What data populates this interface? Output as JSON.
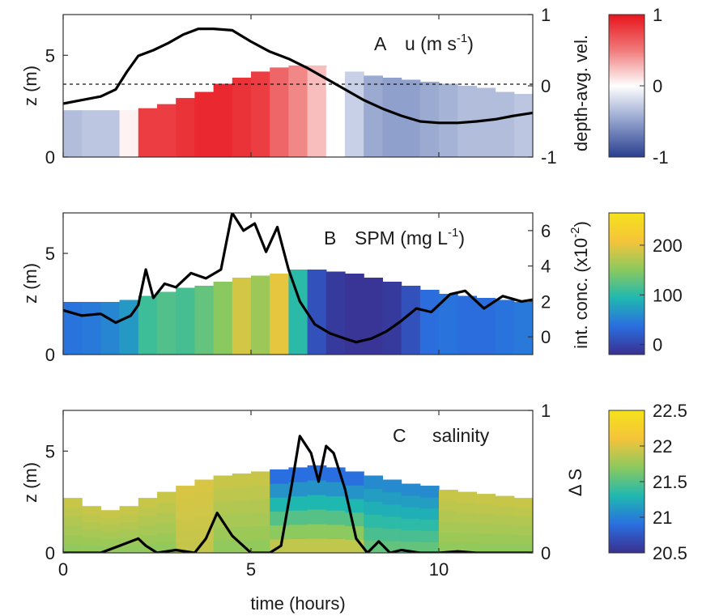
{
  "chart_data": [
    {
      "type": "heatmap",
      "panel_label": "A",
      "title": "u (m s-1)",
      "title_main": "u (m s",
      "title_sup": "-1",
      "title_end": ")",
      "xlabel": "",
      "ylabel": "z (m)",
      "right_ylabel": "depth-avg. vel.",
      "xlim": [
        0,
        12.5
      ],
      "ylim": [
        0,
        7
      ],
      "right_ylim": [
        -1,
        1
      ],
      "xticks": [
        "0",
        "5",
        "10"
      ],
      "yticks": [
        "0",
        "5"
      ],
      "right_yticks": [
        "-1",
        "0",
        "1"
      ],
      "dashed_line_right_y": 0,
      "colormap": [
        "#2a3f8f",
        "#8fa0cc",
        "#ffffff",
        "#f07a7a",
        "#e8141c"
      ],
      "colorbar_ticks": [
        "-1",
        "0",
        "1"
      ],
      "colorbar_range": [
        -1,
        1
      ],
      "line_series": {
        "x": [
          0,
          0.5,
          1.0,
          1.4,
          1.7,
          2.0,
          2.4,
          2.8,
          3.2,
          3.6,
          4.0,
          4.5,
          5.0,
          5.5,
          6.0,
          6.5,
          7.0,
          7.5,
          8.0,
          8.5,
          9.0,
          9.5,
          10.0,
          10.5,
          11.0,
          11.5,
          12.0,
          12.5
        ],
        "y": [
          -0.25,
          -0.2,
          -0.15,
          -0.05,
          0.2,
          0.42,
          0.5,
          0.6,
          0.72,
          0.8,
          0.8,
          0.78,
          0.62,
          0.48,
          0.38,
          0.25,
          0.1,
          -0.05,
          -0.2,
          -0.32,
          -0.42,
          -0.5,
          -0.52,
          -0.52,
          -0.5,
          -0.47,
          -0.42,
          -0.38
        ]
      },
      "field": {
        "time": [
          0,
          0.5,
          1.0,
          1.5,
          2.0,
          2.5,
          3.0,
          3.5,
          4.0,
          4.5,
          5.0,
          5.5,
          6.0,
          6.5,
          7.0,
          7.5,
          8.0,
          8.5,
          9.0,
          9.5,
          10.0,
          10.5,
          11.0,
          11.5,
          12.0,
          12.5
        ],
        "top_z": [
          2.3,
          2.3,
          2.3,
          2.3,
          2.4,
          2.6,
          2.9,
          3.2,
          3.6,
          3.9,
          4.2,
          4.4,
          4.5,
          4.5,
          4.4,
          4.2,
          4.0,
          3.9,
          3.8,
          3.7,
          3.6,
          3.5,
          3.4,
          3.2,
          3.1,
          3.0
        ],
        "value": [
          -0.35,
          -0.3,
          -0.3,
          0.05,
          0.8,
          0.8,
          0.85,
          0.9,
          0.9,
          0.85,
          0.8,
          0.6,
          0.45,
          0.25,
          0.0,
          -0.25,
          -0.45,
          -0.5,
          -0.5,
          -0.45,
          -0.4,
          -0.35,
          -0.35,
          -0.35,
          -0.3,
          -0.3
        ]
      }
    },
    {
      "type": "heatmap",
      "panel_label": "B",
      "title": "SPM (mg L-1)",
      "title_main": "SPM (mg L",
      "title_sup": "-1",
      "title_end": ")",
      "xlabel": "",
      "ylabel": "z (m)",
      "right_ylabel": "int. conc. (x10-2)",
      "right_ylabel_main": "int. conc. (x10",
      "right_ylabel_sup": "-2",
      "right_ylabel_end": ")",
      "xlim": [
        0,
        12.5
      ],
      "ylim": [
        0,
        7
      ],
      "right_ylim": [
        -1,
        7
      ],
      "xticks": [
        "0",
        "5",
        "10"
      ],
      "yticks": [
        "0",
        "5"
      ],
      "right_yticks": [
        "0",
        "2",
        "4",
        "6"
      ],
      "colormap": [
        "#3a2f8f",
        "#2a6fe0",
        "#1fb8b0",
        "#8cc95e",
        "#f5c43a",
        "#f5e21a"
      ],
      "colorbar_ticks": [
        "0",
        "100",
        "200"
      ],
      "colorbar_range": [
        -20,
        265
      ],
      "line_series": {
        "x": [
          0,
          0.5,
          1.0,
          1.4,
          1.8,
          2.0,
          2.2,
          2.4,
          2.7,
          3.0,
          3.4,
          3.8,
          4.2,
          4.5,
          4.8,
          5.1,
          5.4,
          5.7,
          6.0,
          6.3,
          6.7,
          7.1,
          7.5,
          7.8,
          8.2,
          8.6,
          9.0,
          9.4,
          9.8,
          10.3,
          10.7,
          11.2,
          11.7,
          12.2,
          12.5
        ],
        "y": [
          1.5,
          1.2,
          1.3,
          0.8,
          1.2,
          1.8,
          3.8,
          2.2,
          3.0,
          2.8,
          3.6,
          3.3,
          3.8,
          7.0,
          6.0,
          6.4,
          4.8,
          6.2,
          3.8,
          2.0,
          0.7,
          0.2,
          -0.1,
          -0.3,
          -0.1,
          0.3,
          0.9,
          1.6,
          1.4,
          2.4,
          2.6,
          1.6,
          2.3,
          2.0,
          2.1
        ]
      },
      "field": {
        "time": [
          0,
          0.5,
          1.0,
          1.5,
          2.0,
          2.5,
          3.0,
          3.5,
          4.0,
          4.5,
          5.0,
          5.5,
          6.0,
          6.5,
          7.0,
          7.5,
          8.0,
          8.5,
          9.0,
          9.5,
          10.0,
          10.5,
          11.0,
          11.5,
          12.0,
          12.5
        ],
        "top_z": [
          2.6,
          2.6,
          2.6,
          2.7,
          2.9,
          3.1,
          3.3,
          3.4,
          3.6,
          3.8,
          3.9,
          4.0,
          4.2,
          4.2,
          4.1,
          4.0,
          3.8,
          3.6,
          3.4,
          3.2,
          3.0,
          2.9,
          2.8,
          2.7,
          2.6,
          2.5
        ],
        "value": [
          40,
          45,
          55,
          70,
          110,
          120,
          115,
          130,
          150,
          190,
          160,
          200,
          100,
          10,
          -10,
          -15,
          -15,
          -10,
          10,
          35,
          40,
          35,
          35,
          40,
          45,
          40
        ]
      }
    },
    {
      "type": "heatmap",
      "panel_label": "C",
      "title": "salinity",
      "xlabel": "time (hours)",
      "ylabel": "z (m)",
      "right_ylabel": "Δ S",
      "xlim": [
        0,
        12.5
      ],
      "ylim": [
        0,
        7
      ],
      "right_ylim": [
        0,
        1
      ],
      "xticks": [
        "0",
        "5",
        "10"
      ],
      "yticks": [
        "0",
        "5"
      ],
      "right_yticks": [
        "0",
        "1"
      ],
      "colormap": [
        "#3a2f8f",
        "#2a6fe0",
        "#1fb8b0",
        "#8cc95e",
        "#f5c43a",
        "#f5e21a"
      ],
      "colorbar_ticks": [
        "20.5",
        "21",
        "21.5",
        "22",
        "22.5"
      ],
      "colorbar_range": [
        20.5,
        22.5
      ],
      "line_series": {
        "x": [
          0,
          0.5,
          1.0,
          1.5,
          2.0,
          2.2,
          2.5,
          3.0,
          3.5,
          3.8,
          4.1,
          4.5,
          5.0,
          5.5,
          5.8,
          6.1,
          6.3,
          6.6,
          6.8,
          7.0,
          7.2,
          7.5,
          7.8,
          8.1,
          8.4,
          8.7,
          9.0,
          9.5,
          10.0,
          10.5,
          11.0,
          11.5,
          12.0,
          12.5
        ],
        "y": [
          0.0,
          0.0,
          0.0,
          0.05,
          0.1,
          0.05,
          0.0,
          0.02,
          0.0,
          0.1,
          0.28,
          0.12,
          0.0,
          0.0,
          0.05,
          0.5,
          0.82,
          0.7,
          0.5,
          0.75,
          0.7,
          0.45,
          0.1,
          0.0,
          0.08,
          0.0,
          0.02,
          0.0,
          0.0,
          0.01,
          0.0,
          0.0,
          0.0,
          0.0
        ]
      },
      "field": {
        "time": [
          0,
          0.5,
          1.0,
          1.5,
          2.0,
          2.5,
          3.0,
          3.5,
          4.0,
          4.5,
          5.0,
          5.5,
          6.0,
          6.5,
          7.0,
          7.5,
          8.0,
          8.5,
          9.0,
          9.5,
          10.0,
          10.5,
          11.0,
          11.5,
          12.0,
          12.5
        ],
        "top_z": [
          2.7,
          2.3,
          2.1,
          2.3,
          2.7,
          3.0,
          3.3,
          3.6,
          3.8,
          3.9,
          4.0,
          4.1,
          4.2,
          4.3,
          4.2,
          4.0,
          3.8,
          3.6,
          3.4,
          3.3,
          3.1,
          3.0,
          2.9,
          2.8,
          2.7,
          2.6
        ]
      }
    }
  ]
}
